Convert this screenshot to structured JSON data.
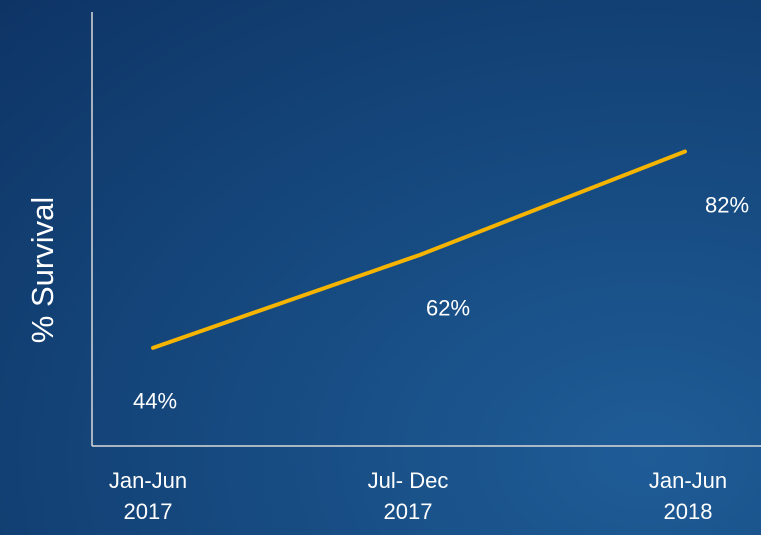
{
  "chart_data": {
    "type": "line",
    "y_label": "% Survival",
    "categories": [
      "Jan-Jun\n2017",
      "Jul- Dec\n2017",
      "Jan-Jun\n2018"
    ],
    "series": [
      {
        "color": "#f5b400",
        "values": [
          44,
          62,
          82
        ],
        "value_labels": [
          "44%",
          "62%",
          "82%"
        ]
      }
    ],
    "ylim": [
      25,
      109
    ]
  }
}
